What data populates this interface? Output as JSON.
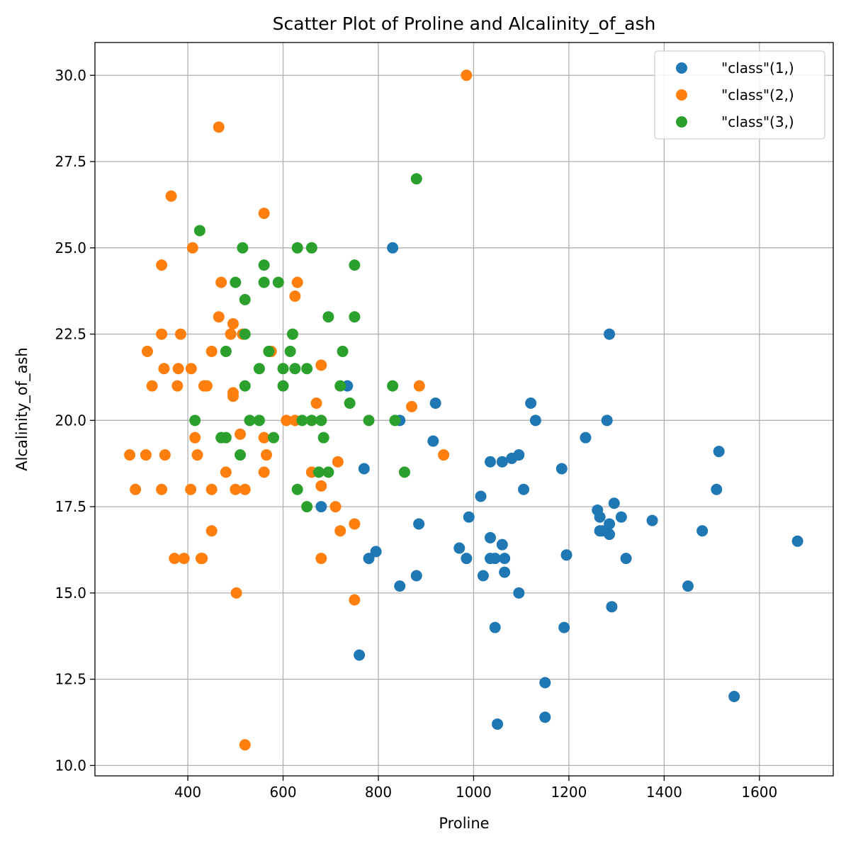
{
  "chart_data": {
    "type": "scatter",
    "title": "Scatter Plot of Proline and Alcalinity_of_ash",
    "xlabel": "Proline",
    "ylabel": "Alcalinity_of_ash",
    "xlim": [
      205,
      1755
    ],
    "ylim": [
      9.7,
      30.95
    ],
    "xticks": [
      400,
      600,
      800,
      1000,
      1200,
      1400,
      1600
    ],
    "yticks": [
      10.0,
      12.5,
      15.0,
      17.5,
      20.0,
      22.5,
      25.0,
      27.5,
      30.0
    ],
    "grid": true,
    "legend_position": "top-right",
    "series": [
      {
        "name": "\"class\"(1,)",
        "color": "#1f77b4",
        "points": [
          [
            830,
            25.0
          ],
          [
            1285,
            22.5
          ],
          [
            735,
            21.0
          ],
          [
            1120,
            20.5
          ],
          [
            920,
            20.5
          ],
          [
            1130,
            20.0
          ],
          [
            1280,
            20.0
          ],
          [
            845,
            20.0
          ],
          [
            1235,
            19.5
          ],
          [
            915,
            19.4
          ],
          [
            1515,
            19.1
          ],
          [
            1095,
            19.0
          ],
          [
            1035,
            18.8
          ],
          [
            1060,
            18.8
          ],
          [
            1080,
            18.9
          ],
          [
            770,
            18.6
          ],
          [
            1185,
            18.6
          ],
          [
            1105,
            18.0
          ],
          [
            1510,
            18.0
          ],
          [
            1015,
            17.8
          ],
          [
            1295,
            17.6
          ],
          [
            680,
            17.5
          ],
          [
            1260,
            17.4
          ],
          [
            990,
            17.2
          ],
          [
            1265,
            17.2
          ],
          [
            1310,
            17.2
          ],
          [
            1375,
            17.1
          ],
          [
            885,
            17.0
          ],
          [
            1285,
            17.0
          ],
          [
            1265,
            16.8
          ],
          [
            1270,
            16.8
          ],
          [
            1480,
            16.8
          ],
          [
            1285,
            16.7
          ],
          [
            1035,
            16.6
          ],
          [
            1680,
            16.5
          ],
          [
            1060,
            16.4
          ],
          [
            970,
            16.3
          ],
          [
            795,
            16.2
          ],
          [
            1195,
            16.1
          ],
          [
            780,
            16.0
          ],
          [
            985,
            16.0
          ],
          [
            1035,
            16.0
          ],
          [
            1045,
            16.0
          ],
          [
            1065,
            16.0
          ],
          [
            1320,
            16.0
          ],
          [
            1065,
            15.6
          ],
          [
            880,
            15.5
          ],
          [
            1020,
            15.5
          ],
          [
            845,
            15.2
          ],
          [
            1450,
            15.2
          ],
          [
            1095,
            15.0
          ],
          [
            1290,
            14.6
          ],
          [
            1045,
            14.0
          ],
          [
            1190,
            14.0
          ],
          [
            760,
            13.2
          ],
          [
            1150,
            12.4
          ],
          [
            1547,
            12.0
          ],
          [
            1150,
            11.4
          ],
          [
            1050,
            11.2
          ]
        ]
      },
      {
        "name": "\"class\"(2,)",
        "color": "#ff7f0e",
        "points": [
          [
            985,
            30.0
          ],
          [
            465,
            28.5
          ],
          [
            365,
            26.5
          ],
          [
            560,
            26.0
          ],
          [
            410,
            25.0
          ],
          [
            345,
            24.5
          ],
          [
            470,
            24.0
          ],
          [
            630,
            24.0
          ],
          [
            625,
            23.6
          ],
          [
            465,
            23.0
          ],
          [
            495,
            22.8
          ],
          [
            345,
            22.5
          ],
          [
            385,
            22.5
          ],
          [
            490,
            22.5
          ],
          [
            515,
            22.5
          ],
          [
            315,
            22.0
          ],
          [
            450,
            22.0
          ],
          [
            575,
            22.0
          ],
          [
            680,
            21.6
          ],
          [
            350,
            21.5
          ],
          [
            380,
            21.5
          ],
          [
            407,
            21.5
          ],
          [
            325,
            21.0
          ],
          [
            378,
            21.0
          ],
          [
            434,
            21.0
          ],
          [
            440,
            21.0
          ],
          [
            886,
            21.0
          ],
          [
            495,
            20.8
          ],
          [
            495,
            20.7
          ],
          [
            670,
            20.5
          ],
          [
            870,
            20.4
          ],
          [
            607,
            20.0
          ],
          [
            625,
            20.0
          ],
          [
            415,
            19.5
          ],
          [
            510,
            19.6
          ],
          [
            560,
            19.5
          ],
          [
            278,
            19.0
          ],
          [
            312,
            19.0
          ],
          [
            352,
            19.0
          ],
          [
            420,
            19.0
          ],
          [
            565,
            19.0
          ],
          [
            937,
            19.0
          ],
          [
            715,
            18.8
          ],
          [
            480,
            18.5
          ],
          [
            560,
            18.5
          ],
          [
            660,
            18.5
          ],
          [
            680,
            18.1
          ],
          [
            290,
            18.0
          ],
          [
            345,
            18.0
          ],
          [
            406,
            18.0
          ],
          [
            450,
            18.0
          ],
          [
            500,
            18.0
          ],
          [
            520,
            18.0
          ],
          [
            710,
            17.5
          ],
          [
            750,
            17.0
          ],
          [
            450,
            16.8
          ],
          [
            720,
            16.8
          ],
          [
            372,
            16.0
          ],
          [
            392,
            16.0
          ],
          [
            428,
            16.0
          ],
          [
            430,
            16.0
          ],
          [
            680,
            16.0
          ],
          [
            502,
            15.0
          ],
          [
            750,
            14.8
          ],
          [
            520,
            10.6
          ]
        ]
      },
      {
        "name": "\"class\"(3,)",
        "color": "#2ca02c",
        "points": [
          [
            880,
            27.0
          ],
          [
            425,
            25.5
          ],
          [
            515,
            25.0
          ],
          [
            630,
            25.0
          ],
          [
            660,
            25.0
          ],
          [
            560,
            24.5
          ],
          [
            750,
            24.5
          ],
          [
            500,
            24.0
          ],
          [
            560,
            24.0
          ],
          [
            590,
            24.0
          ],
          [
            520,
            23.5
          ],
          [
            695,
            23.0
          ],
          [
            750,
            23.0
          ],
          [
            520,
            22.5
          ],
          [
            620,
            22.5
          ],
          [
            480,
            22.0
          ],
          [
            570,
            22.0
          ],
          [
            615,
            22.0
          ],
          [
            725,
            22.0
          ],
          [
            550,
            21.5
          ],
          [
            600,
            21.5
          ],
          [
            625,
            21.5
          ],
          [
            650,
            21.5
          ],
          [
            520,
            21.0
          ],
          [
            600,
            21.0
          ],
          [
            720,
            21.0
          ],
          [
            830,
            21.0
          ],
          [
            740,
            20.5
          ],
          [
            415,
            20.0
          ],
          [
            530,
            20.0
          ],
          [
            550,
            20.0
          ],
          [
            640,
            20.0
          ],
          [
            660,
            20.0
          ],
          [
            680,
            20.0
          ],
          [
            780,
            20.0
          ],
          [
            835,
            20.0
          ],
          [
            470,
            19.5
          ],
          [
            480,
            19.5
          ],
          [
            580,
            19.5
          ],
          [
            685,
            19.5
          ],
          [
            510,
            19.0
          ],
          [
            675,
            18.5
          ],
          [
            695,
            18.5
          ],
          [
            855,
            18.5
          ],
          [
            630,
            18.0
          ],
          [
            650,
            17.5
          ]
        ]
      }
    ]
  }
}
